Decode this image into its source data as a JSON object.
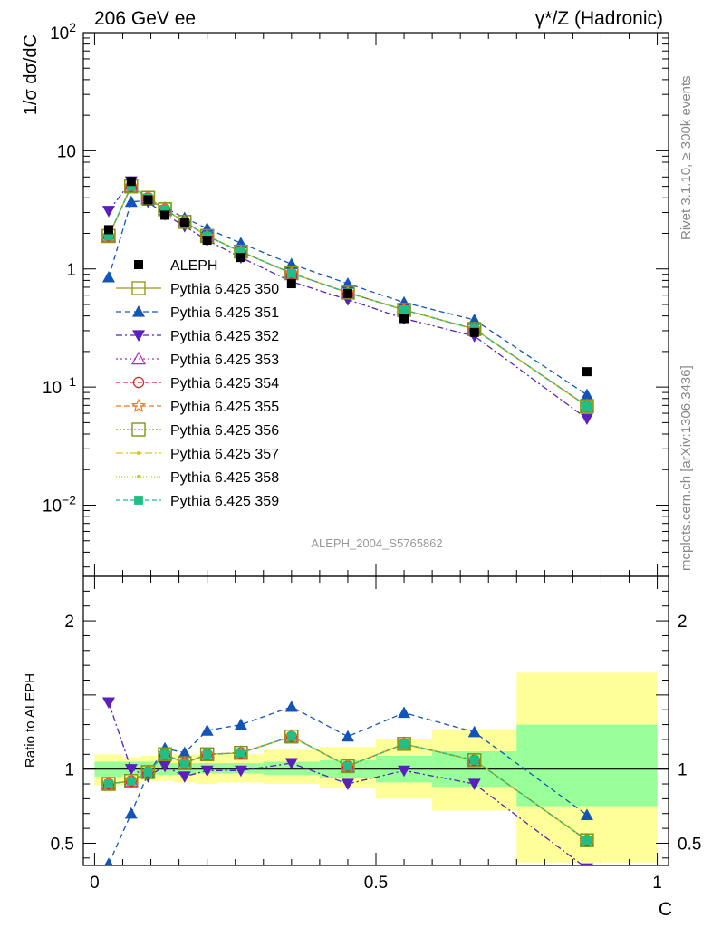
{
  "header": {
    "left": "206 GeV ee",
    "right": "γ*/Z (Hadronic)"
  },
  "side_labels": {
    "rivet": "Rivet 3.1.10, ≥ 300k events",
    "mcplots": "mcplots.cern.ch [arXiv:1306.3436]"
  },
  "watermark": "ALEPH_2004_S5765862",
  "chart_data": [
    {
      "type": "line",
      "panel": "main",
      "ylabel": "1/σ  dσ/dC",
      "yscale": "log",
      "ylim": [
        0.0025,
        100
      ],
      "xlim": [
        -0.02,
        1.02
      ],
      "y_ticks": [
        {
          "value": 100,
          "base": "10",
          "exp": "2"
        },
        {
          "value": 10,
          "base": "10",
          "exp": ""
        },
        {
          "value": 1,
          "base": "1",
          "exp": ""
        },
        {
          "value": 0.1,
          "base": "10",
          "exp": "−1"
        },
        {
          "value": 0.01,
          "base": "10",
          "exp": "−2"
        }
      ],
      "x": [
        0.025,
        0.065,
        0.095,
        0.125,
        0.16,
        0.2,
        0.26,
        0.35,
        0.45,
        0.55,
        0.675,
        0.875
      ],
      "data": {
        "name": "ALEPH",
        "color": "#000000",
        "values": [
          2.15,
          5.5,
          3.85,
          2.85,
          2.45,
          1.75,
          1.25,
          0.75,
          0.62,
          0.38,
          0.29,
          0.135
        ]
      },
      "series": [
        {
          "name": "Pythia 6.425 350",
          "color": "#9a9a1e",
          "marker": "square-open",
          "dash": "",
          "values": [
            1.9,
            5.0,
            4.0,
            3.2,
            2.5,
            1.9,
            1.4,
            0.92,
            0.63,
            0.45,
            0.31,
            0.069
          ]
        },
        {
          "name": "Pythia 6.425 351",
          "color": "#1255b7",
          "marker": "triangle-up",
          "dash": "6,4",
          "values": [
            0.85,
            3.7,
            3.8,
            3.3,
            2.7,
            2.2,
            1.65,
            1.1,
            0.75,
            0.52,
            0.37,
            0.086
          ]
        },
        {
          "name": "Pythia 6.425 352",
          "color": "#5a1fbd",
          "marker": "triangle-down",
          "dash": "7,3,2,3",
          "values": [
            3.1,
            5.5,
            3.7,
            2.9,
            2.3,
            1.75,
            1.25,
            0.78,
            0.55,
            0.38,
            0.27,
            0.054
          ]
        },
        {
          "name": "Pythia 6.425 353",
          "color": "#b22ca8",
          "marker": "triangle-open",
          "dash": "2,3",
          "values": [
            1.9,
            5.0,
            4.0,
            3.2,
            2.5,
            1.9,
            1.4,
            0.92,
            0.63,
            0.45,
            0.31,
            0.069
          ]
        },
        {
          "name": "Pythia 6.425 354",
          "color": "#e02020",
          "marker": "circle-open",
          "dash": "5,3",
          "values": [
            1.9,
            5.0,
            4.0,
            3.2,
            2.5,
            1.9,
            1.4,
            0.92,
            0.63,
            0.45,
            0.31,
            0.069
          ]
        },
        {
          "name": "Pythia 6.425 355",
          "color": "#f07a18",
          "marker": "star-open",
          "dash": "6,3",
          "values": [
            1.9,
            5.0,
            4.0,
            3.2,
            2.5,
            1.9,
            1.4,
            0.92,
            0.63,
            0.45,
            0.31,
            0.069
          ]
        },
        {
          "name": "Pythia 6.425 356",
          "color": "#7e9a14",
          "marker": "square-open",
          "dash": "2,2",
          "values": [
            1.9,
            5.0,
            4.0,
            3.2,
            2.5,
            1.9,
            1.4,
            0.92,
            0.63,
            0.45,
            0.31,
            0.069
          ]
        },
        {
          "name": "Pythia 6.425 357",
          "color": "#e3c01a",
          "marker": "dot",
          "dash": "8,3,2,3",
          "values": [
            1.9,
            5.0,
            4.0,
            3.2,
            2.5,
            1.9,
            1.4,
            0.92,
            0.63,
            0.45,
            0.31,
            0.069
          ]
        },
        {
          "name": "Pythia 6.425 358",
          "color": "#bcd11b",
          "marker": "dot",
          "dash": "1,2",
          "values": [
            1.9,
            5.0,
            4.0,
            3.2,
            2.5,
            1.9,
            1.4,
            0.92,
            0.63,
            0.45,
            0.31,
            0.069
          ]
        },
        {
          "name": "Pythia 6.425 359",
          "color": "#1fbf86",
          "marker": "square-filled",
          "dash": "5,3",
          "values": [
            1.9,
            5.0,
            4.0,
            3.2,
            2.5,
            1.9,
            1.4,
            0.92,
            0.63,
            0.45,
            0.31,
            0.069
          ]
        }
      ]
    },
    {
      "type": "line",
      "panel": "ratio",
      "xlabel": "C",
      "ylabel": "Ratio to ALEPH",
      "ylim": [
        0.35,
        2.3
      ],
      "xlim": [
        -0.02,
        1.02
      ],
      "y_ticks": [
        0.5,
        1,
        2
      ],
      "x_ticks": [
        {
          "value": 0,
          "label": "0"
        },
        {
          "value": 0.5,
          "label": "0.5"
        },
        {
          "value": 1,
          "label": "1"
        }
      ],
      "bands": {
        "bins": [
          [
            0,
            0.05
          ],
          [
            0.05,
            0.08
          ],
          [
            0.08,
            0.11
          ],
          [
            0.11,
            0.14
          ],
          [
            0.14,
            0.18
          ],
          [
            0.18,
            0.22
          ],
          [
            0.22,
            0.3
          ],
          [
            0.3,
            0.4
          ],
          [
            0.4,
            0.5
          ],
          [
            0.5,
            0.6
          ],
          [
            0.6,
            0.75
          ],
          [
            0.75,
            1.0
          ]
        ],
        "stat_low": [
          0.95,
          0.96,
          0.96,
          0.96,
          0.96,
          0.97,
          0.97,
          0.96,
          0.94,
          0.91,
          0.88,
          0.75
        ],
        "stat_high": [
          1.05,
          1.05,
          1.05,
          1.04,
          1.04,
          1.04,
          1.04,
          1.05,
          1.06,
          1.09,
          1.12,
          1.3
        ],
        "total_low": [
          0.89,
          0.9,
          0.92,
          0.92,
          0.91,
          0.9,
          0.91,
          0.9,
          0.87,
          0.8,
          0.72,
          0.37
        ],
        "total_high": [
          1.1,
          1.08,
          1.09,
          1.09,
          1.1,
          1.1,
          1.1,
          1.13,
          1.15,
          1.2,
          1.27,
          1.65
        ],
        "stat_color": "#99ff99",
        "total_color": "#ffff99"
      },
      "series": [
        {
          "name": "Pythia 6.425 350",
          "values": [
            0.9,
            0.92,
            0.98,
            1.1,
            1.04,
            1.1,
            1.11,
            1.22,
            1.02,
            1.17,
            1.06,
            0.52
          ]
        },
        {
          "name": "Pythia 6.425 351",
          "values": [
            0.36,
            0.7,
            0.97,
            1.14,
            1.11,
            1.26,
            1.3,
            1.42,
            1.22,
            1.38,
            1.25,
            0.69
          ]
        },
        {
          "name": "Pythia 6.425 352",
          "values": [
            1.45,
            1.0,
            0.95,
            1.02,
            0.95,
            0.99,
            0.99,
            1.04,
            0.9,
            0.99,
            0.9,
            0.33
          ]
        },
        {
          "name": "Pythia 6.425 353",
          "values": [
            0.9,
            0.92,
            0.98,
            1.1,
            1.04,
            1.1,
            1.11,
            1.22,
            1.02,
            1.17,
            1.06,
            0.52
          ]
        },
        {
          "name": "Pythia 6.425 354",
          "values": [
            0.9,
            0.92,
            0.98,
            1.1,
            1.04,
            1.1,
            1.11,
            1.22,
            1.02,
            1.17,
            1.06,
            0.52
          ]
        },
        {
          "name": "Pythia 6.425 355",
          "values": [
            0.9,
            0.92,
            0.98,
            1.1,
            1.04,
            1.1,
            1.11,
            1.22,
            1.02,
            1.17,
            1.06,
            0.52
          ]
        },
        {
          "name": "Pythia 6.425 356",
          "values": [
            0.9,
            0.92,
            0.98,
            1.1,
            1.04,
            1.1,
            1.11,
            1.22,
            1.02,
            1.17,
            1.06,
            0.52
          ]
        },
        {
          "name": "Pythia 6.425 357",
          "values": [
            0.9,
            0.92,
            0.98,
            1.1,
            1.04,
            1.1,
            1.11,
            1.22,
            1.02,
            1.17,
            1.06,
            0.52
          ]
        },
        {
          "name": "Pythia 6.425 358",
          "values": [
            0.9,
            0.92,
            0.98,
            1.1,
            1.04,
            1.1,
            1.11,
            1.22,
            1.02,
            1.17,
            1.06,
            0.52
          ]
        },
        {
          "name": "Pythia 6.425 359",
          "values": [
            0.9,
            0.92,
            0.98,
            1.1,
            1.04,
            1.1,
            1.11,
            1.22,
            1.02,
            1.17,
            1.06,
            0.52
          ]
        }
      ]
    }
  ]
}
